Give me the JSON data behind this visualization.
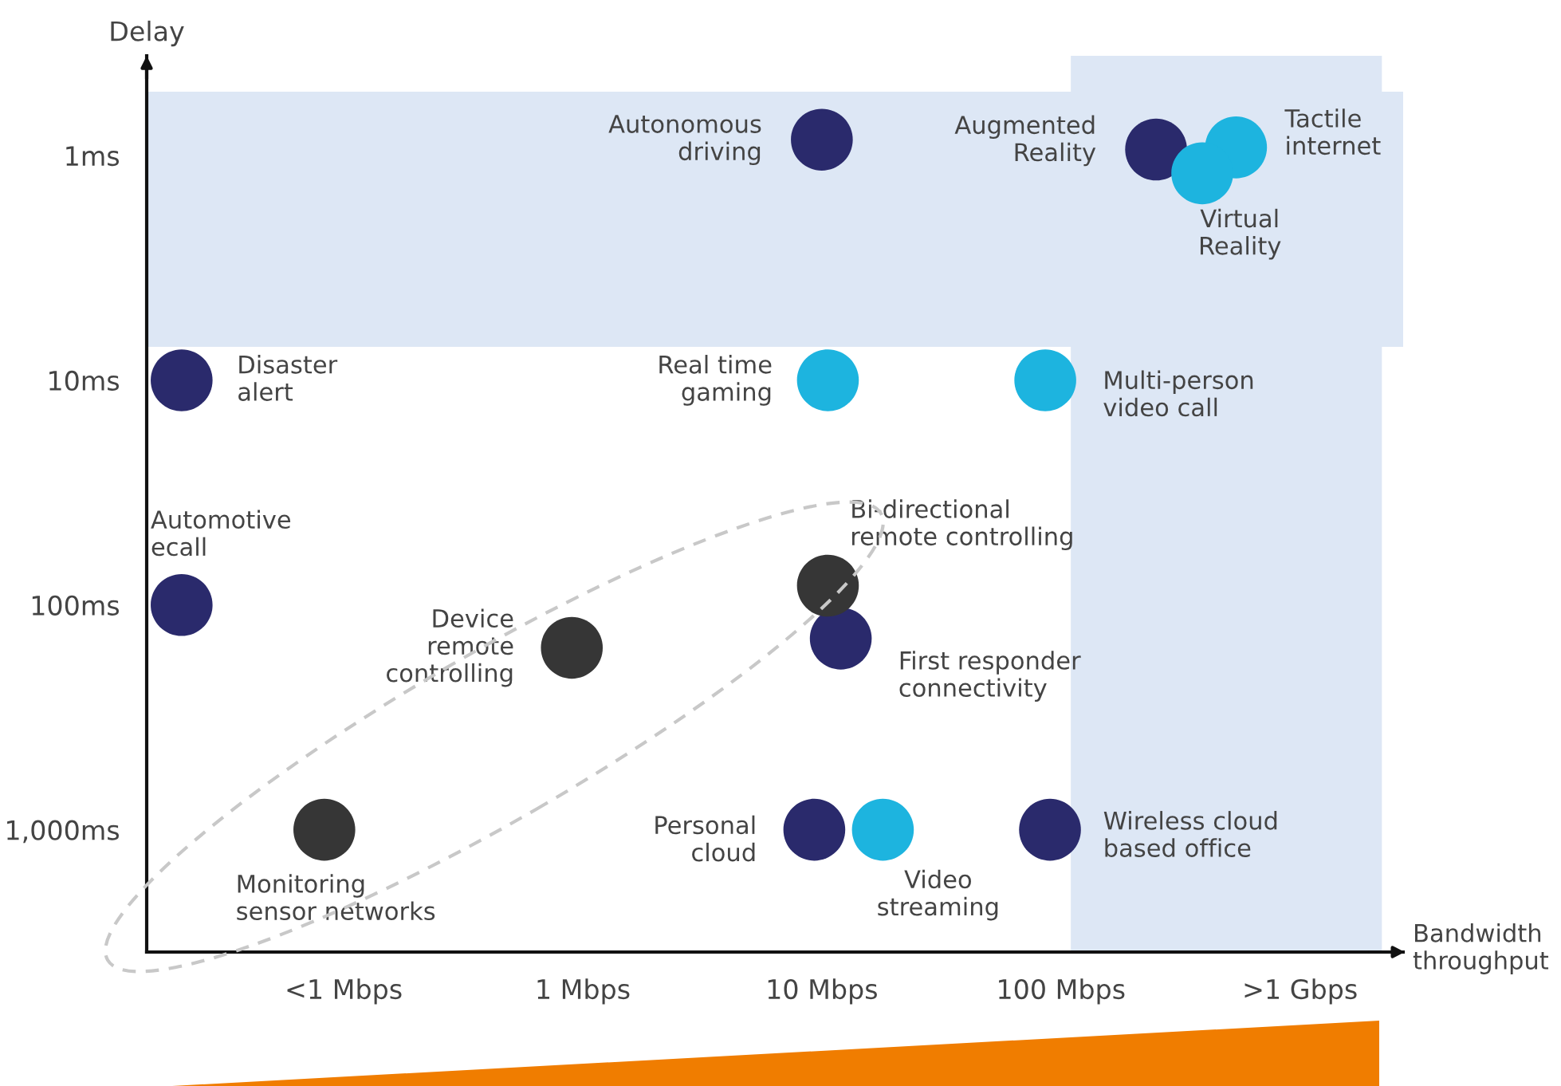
{
  "chart_data": {
    "type": "scatter",
    "xlabel": "Bandwidth\nthroughput",
    "ylabel": "Delay",
    "log": "xy",
    "marker": "circle",
    "grid": false,
    "xlim": [
      0.015,
      2700
    ],
    "ylim": [
      3500,
      0.36
    ],
    "xticks": [
      {
        "value": 0.1,
        "label": "<1 Mbps"
      },
      {
        "value": 1,
        "label": "1 Mbps"
      },
      {
        "value": 10,
        "label": "10 Mbps"
      },
      {
        "value": 100,
        "label": "100 Mbps"
      },
      {
        "value": 1000,
        "label": ">1 Gbps"
      }
    ],
    "yticks": [
      {
        "value": 1,
        "label": "1ms"
      },
      {
        "value": 10,
        "label": "10ms"
      },
      {
        "value": 100,
        "label": "100ms"
      },
      {
        "value": 1000,
        "label": "1,000ms"
      }
    ],
    "bands": [
      {
        "axis": "y",
        "from": 0.52,
        "to": 7.1,
        "color": "#dde7f5"
      },
      {
        "axis": "x",
        "from": 110,
        "to": 2200,
        "color": "#dde7f5"
      }
    ],
    "series": [
      {
        "color": "#2a2a6c",
        "x": [
          10,
          250,
          0.021,
          0.021,
          12,
          9.3,
          90
        ],
        "values": [
          0.85,
          0.94,
          10,
          100,
          141,
          1000,
          1000
        ]
      },
      {
        "color": "#1db4df",
        "x": [
          540,
          390,
          10.6,
          86,
          18
        ],
        "values": [
          0.92,
          1.2,
          10,
          10,
          1000
        ]
      },
      {
        "color": "#363636",
        "x": [
          0.9,
          10.6,
          0.083
        ],
        "values": [
          155,
          82,
          1000
        ]
      }
    ],
    "annotations": [
      {
        "text": "Autonomous\ndriving",
        "x": 10,
        "y": 0.85
      },
      {
        "text": "Augmented\nReality",
        "x": 250,
        "y": 0.94
      },
      {
        "text": "Tactile\ninternet",
        "x": 540,
        "y": 0.92
      },
      {
        "text": "Virtual\nReality",
        "x": 390,
        "y": 1.2
      },
      {
        "text": "Disaster\nalert",
        "x": 0.021,
        "y": 10
      },
      {
        "text": "Real time\ngaming",
        "x": 10.6,
        "y": 10
      },
      {
        "text": "Multi-person\nvideo call",
        "x": 86,
        "y": 10
      },
      {
        "text": "Automotive\necall",
        "x": 0.021,
        "y": 100
      },
      {
        "text": "Device\nremote\ncontrolling",
        "x": 0.9,
        "y": 155
      },
      {
        "text": "Bi-directional\nremote controlling",
        "x": 10.6,
        "y": 82
      },
      {
        "text": "First responder\nconnectivity",
        "x": 12,
        "y": 141
      },
      {
        "text": "Monitoring\nsensor networks",
        "x": 0.083,
        "y": 1000
      },
      {
        "text": "Personal\ncloud",
        "x": 9.3,
        "y": 1000
      },
      {
        "text": "Video\nstreaming",
        "x": 18,
        "y": 1000
      },
      {
        "text": "Wireless cloud\nbased office",
        "x": 90,
        "y": 1000
      }
    ]
  }
}
